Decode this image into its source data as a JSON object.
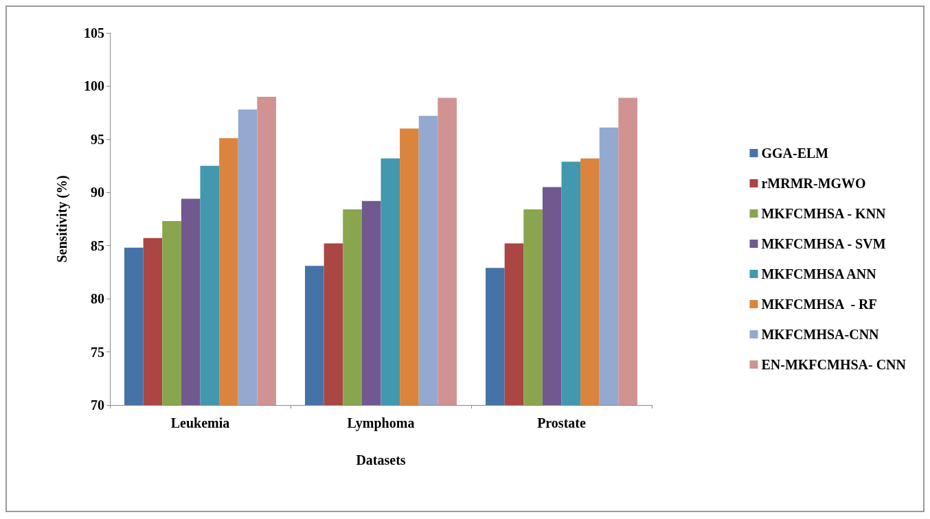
{
  "chart_data": {
    "type": "bar",
    "xlabel": "Datasets",
    "ylabel": "Sensitivity (%)",
    "categories": [
      "Leukemia",
      "Lymphoma",
      "Prostate"
    ],
    "series": [
      {
        "name": "GGA-ELM",
        "color": "#4572a7",
        "values": [
          84.8,
          83.1,
          82.9
        ]
      },
      {
        "name": "rMRMR-MGWO",
        "color": "#aa4643",
        "values": [
          85.7,
          85.2,
          85.2
        ]
      },
      {
        "name": "MKFCMHSA - KNN",
        "color": "#89a54e",
        "values": [
          87.3,
          88.4,
          88.4
        ]
      },
      {
        "name": "MKFCMHSA - SVM",
        "color": "#71588f",
        "values": [
          89.4,
          89.2,
          90.5
        ]
      },
      {
        "name": "MKFCMHSA ANN",
        "color": "#4198af",
        "values": [
          92.5,
          93.2,
          92.9
        ]
      },
      {
        "name": "MKFCMHSA  - RF",
        "color": "#db843d",
        "values": [
          95.1,
          96.0,
          93.2
        ]
      },
      {
        "name": "MKFCMHSA-CNN",
        "color": "#93a9cf",
        "values": [
          97.8,
          97.2,
          96.1
        ]
      },
      {
        "name": "EN-MKFCMHSA- CNN",
        "color": "#d19392",
        "values": [
          99.0,
          98.9,
          98.9
        ]
      }
    ],
    "ylim": [
      70,
      105
    ],
    "yticks": [
      70,
      75,
      80,
      85,
      90,
      95,
      100,
      105
    ],
    "grid": false,
    "legend": "right"
  }
}
